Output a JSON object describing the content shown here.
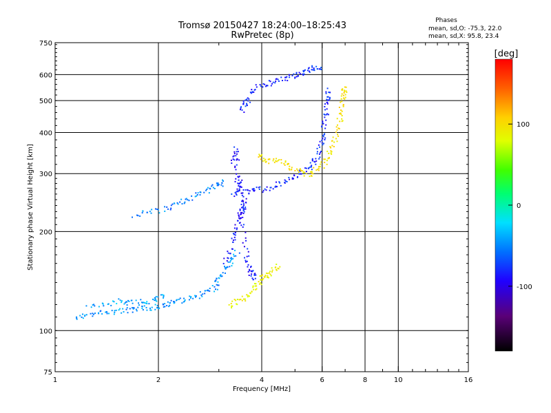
{
  "chart_data": {
    "type": "scatter",
    "title": "Tromsø 20150427 18:24:00–18:25:43",
    "subtitle": "RwPretec (8p)",
    "xlabel": "Frequency [MHz]",
    "ylabel": "Stationary phase Virtual Height [km]",
    "x_scale": "log",
    "y_scale": "log",
    "xlim": [
      1,
      16
    ],
    "ylim": [
      75,
      750
    ],
    "x_ticks": [
      1,
      2,
      4,
      6,
      8,
      10,
      16
    ],
    "x_tick_labels": [
      "1",
      "2",
      "4",
      "6",
      "8",
      "10",
      "16"
    ],
    "x_grid": [
      2,
      4,
      6,
      8,
      10
    ],
    "y_ticks": [
      75,
      100,
      200,
      300,
      400,
      500,
      600,
      750
    ],
    "y_tick_labels": [
      "75",
      "100",
      "200",
      "300",
      "400",
      "500",
      "600",
      "750"
    ],
    "y_grid": [
      100,
      200,
      300,
      400,
      500,
      600
    ],
    "grid": true,
    "phases_box": {
      "heading": "Phases",
      "line1": "mean, sd,O:  -75.3, 22.0",
      "line2": "mean, sd,X:  95.8, 23.4"
    },
    "colorbar": {
      "label": "[deg]",
      "range": [
        -180,
        180
      ],
      "ticks": [
        100,
        0,
        -100
      ],
      "tick_labels": [
        "100",
        "0",
        "-100"
      ],
      "colormap": "rainbow (black → purple → blue → cyan → green → yellow → orange → red)"
    },
    "traces": [
      {
        "trace": "low F region (cyan)",
        "phase_deg": -60,
        "points": [
          [
            1.15,
            110
          ],
          [
            1.3,
            113
          ],
          [
            1.5,
            115
          ],
          [
            1.7,
            116
          ],
          [
            1.9,
            118
          ],
          [
            2.1,
            120
          ],
          [
            2.3,
            124
          ],
          [
            2.6,
            128
          ],
          [
            2.9,
            135
          ],
          [
            3.0,
            145
          ],
          [
            3.2,
            160
          ],
          [
            3.4,
            175
          ]
        ]
      },
      {
        "trace": "low F region upper band (cyan)",
        "phase_deg": -55,
        "points": [
          [
            1.25,
            118
          ],
          [
            1.5,
            123
          ],
          [
            1.7,
            122
          ],
          [
            1.9,
            124
          ],
          [
            2.1,
            128
          ]
        ]
      },
      {
        "trace": "E/F1 spread (blue)",
        "phase_deg": -95,
        "points": [
          [
            3.1,
            160
          ],
          [
            3.3,
            190
          ],
          [
            3.4,
            215
          ],
          [
            3.5,
            235
          ],
          [
            3.6,
            170
          ],
          [
            3.7,
            150
          ],
          [
            3.8,
            145
          ]
        ]
      },
      {
        "trace": "X mode low (yellow)",
        "phase_deg": 90,
        "points": [
          [
            3.2,
            120
          ],
          [
            3.5,
            125
          ],
          [
            3.8,
            135
          ],
          [
            4.0,
            145
          ],
          [
            4.2,
            150
          ],
          [
            4.5,
            160
          ]
        ]
      },
      {
        "trace": "mid F ramp (cyan)",
        "phase_deg": -65,
        "points": [
          [
            1.7,
            225
          ],
          [
            2.0,
            232
          ],
          [
            2.3,
            245
          ],
          [
            2.6,
            260
          ],
          [
            2.9,
            275
          ],
          [
            3.1,
            285
          ]
        ]
      },
      {
        "trace": "F2 O mode (blue)",
        "phase_deg": -90,
        "points": [
          [
            3.3,
            262
          ],
          [
            3.6,
            265
          ],
          [
            4.0,
            270
          ],
          [
            4.5,
            280
          ],
          [
            5.0,
            295
          ],
          [
            5.5,
            315
          ],
          [
            5.8,
            340
          ],
          [
            6.0,
            380
          ],
          [
            6.1,
            440
          ],
          [
            6.2,
            500
          ],
          [
            6.25,
            540
          ]
        ]
      },
      {
        "trace": "F2 X mode (yellow/orange)",
        "phase_deg": 100,
        "points": [
          [
            3.9,
            340
          ],
          [
            4.2,
            330
          ],
          [
            4.6,
            325
          ],
          [
            5.0,
            310
          ],
          [
            5.5,
            300
          ],
          [
            6.0,
            320
          ],
          [
            6.3,
            350
          ],
          [
            6.6,
            400
          ],
          [
            6.8,
            460
          ],
          [
            6.9,
            520
          ],
          [
            6.95,
            560
          ]
        ]
      },
      {
        "trace": "spread F column (blue)",
        "phase_deg": -95,
        "points": [
          [
            3.3,
            320
          ],
          [
            3.35,
            360
          ],
          [
            3.4,
            270
          ],
          [
            3.45,
            290
          ],
          [
            3.5,
            230
          ],
          [
            3.55,
            250
          ]
        ]
      },
      {
        "trace": "upper echoes (blue)",
        "phase_deg": -90,
        "points": [
          [
            3.5,
            470
          ],
          [
            3.6,
            500
          ],
          [
            3.9,
            560
          ],
          [
            4.3,
            570
          ],
          [
            4.8,
            590
          ],
          [
            5.2,
            610
          ],
          [
            5.6,
            630
          ],
          [
            5.9,
            635
          ]
        ]
      }
    ]
  }
}
